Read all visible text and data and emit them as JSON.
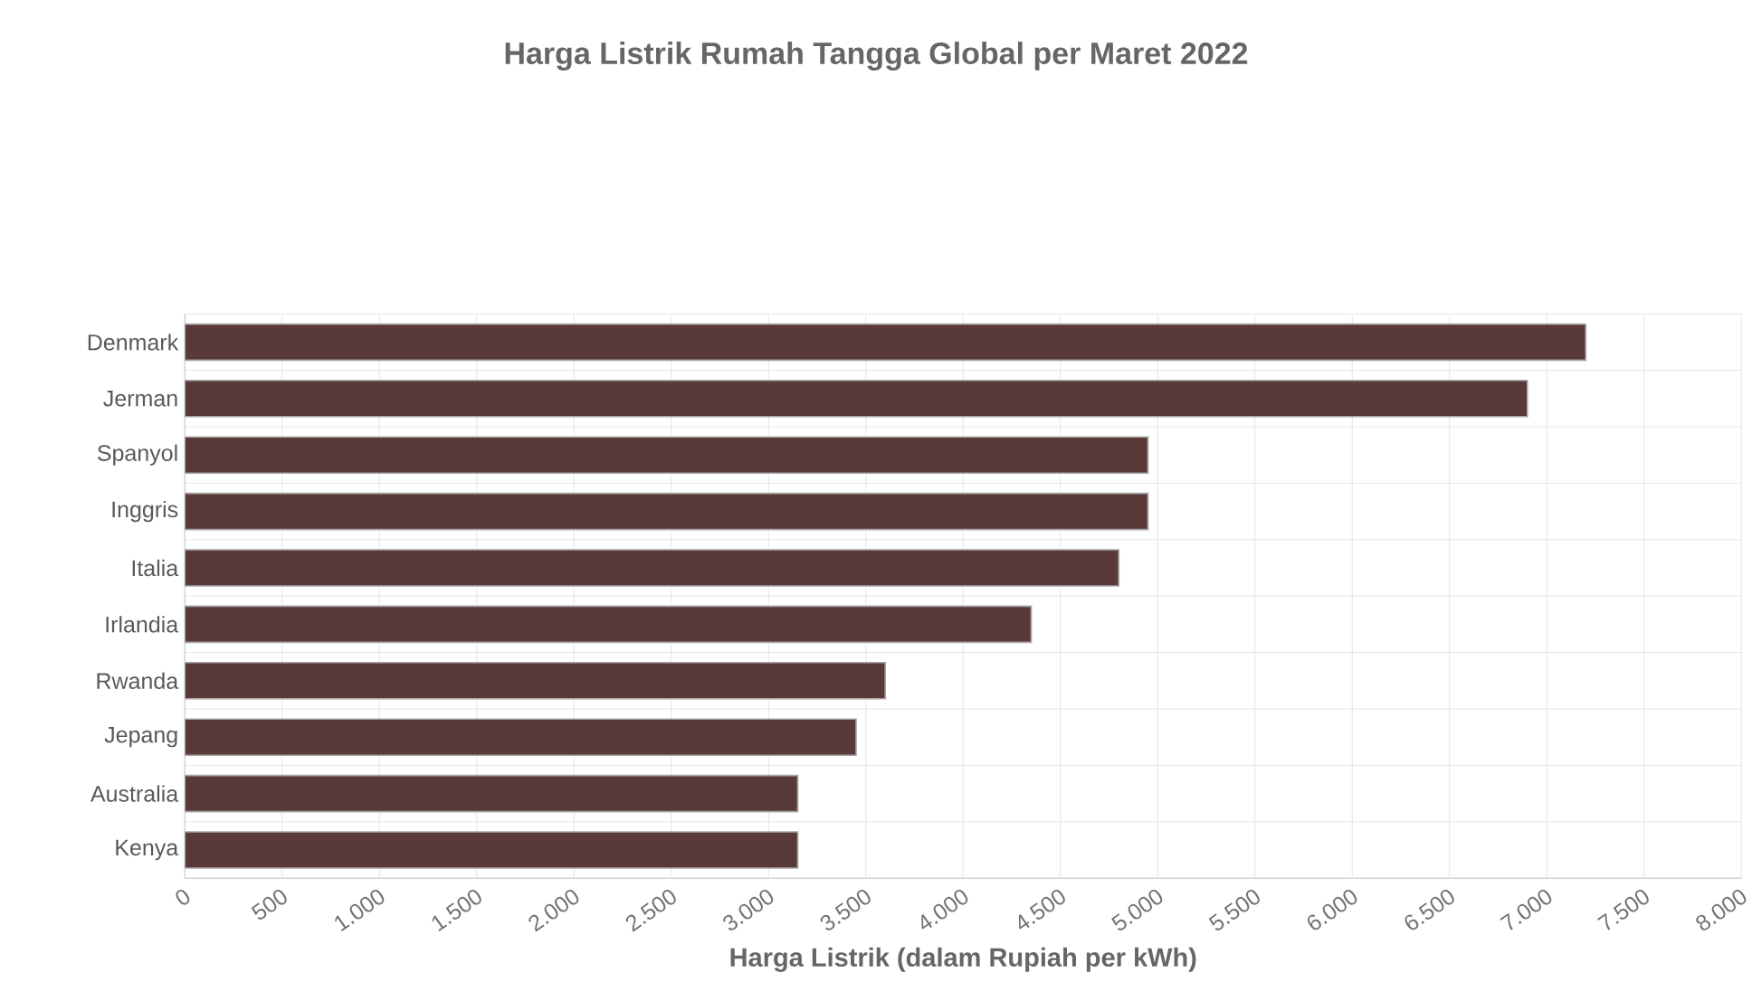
{
  "chart_data": {
    "type": "bar",
    "orientation": "horizontal",
    "title": "Harga Listrik Rumah Tangga Global per Maret 2022",
    "xlabel": "Harga Listrik (dalam Rupiah per kWh)",
    "categories": [
      "Denmark",
      "Jerman",
      "Spanyol",
      "Inggris",
      "Italia",
      "Irlandia",
      "Rwanda",
      "Jepang",
      "Australia",
      "Kenya"
    ],
    "values": [
      7200,
      6900,
      4950,
      4950,
      4800,
      4350,
      3600,
      3450,
      3150,
      3150
    ],
    "color": "#5a3a38",
    "xlim": [
      0,
      8000
    ],
    "xticks": [
      0,
      {
        "value": 500,
        "label": "500"
      },
      {
        "value": 1000,
        "label": "1.000"
      },
      {
        "value": 1500,
        "label": "1.500"
      },
      {
        "value": 2000,
        "label": "2.000"
      },
      {
        "value": 2500,
        "label": "2.500"
      },
      {
        "value": 3000,
        "label": "3.000"
      },
      {
        "value": 3500,
        "label": "3.500"
      },
      {
        "value": 4000,
        "label": "4.000"
      },
      {
        "value": 4500,
        "label": "4.500"
      },
      {
        "value": 5000,
        "label": "5.000"
      },
      {
        "value": 5500,
        "label": "5.500"
      },
      {
        "value": 6000,
        "label": "6.000"
      },
      {
        "value": 6500,
        "label": "6.500"
      },
      {
        "value": 7000,
        "label": "7.000"
      },
      {
        "value": 7500,
        "label": "7.500"
      },
      {
        "value": 8000,
        "label": "8.000"
      }
    ],
    "grid": true
  }
}
